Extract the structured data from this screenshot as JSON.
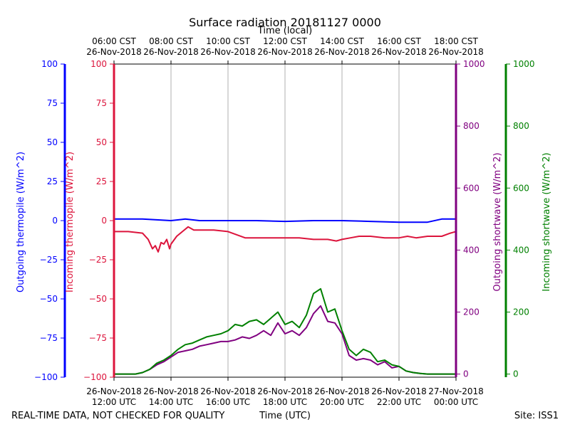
{
  "chart_data": {
    "type": "line",
    "title": "Surface radiation 20181127 0000",
    "top_axis_label": "Time (local)",
    "xlabel": "Time (UTC)",
    "footer_left": "REAL-TIME DATA, NOT CHECKED FOR QUALITY",
    "footer_right": "Site: ISS1",
    "x_range_utc_hours": [
      12,
      24
    ],
    "grid": "vertical",
    "x_ticks_utc": [
      {
        "hour": 12,
        "date": "26-Nov-2018",
        "time": "12:00 UTC"
      },
      {
        "hour": 14,
        "date": "26-Nov-2018",
        "time": "14:00 UTC"
      },
      {
        "hour": 16,
        "date": "26-Nov-2018",
        "time": "16:00 UTC"
      },
      {
        "hour": 18,
        "date": "26-Nov-2018",
        "time": "18:00 UTC"
      },
      {
        "hour": 20,
        "date": "26-Nov-2018",
        "time": "20:00 UTC"
      },
      {
        "hour": 22,
        "date": "26-Nov-2018",
        "time": "22:00 UTC"
      },
      {
        "hour": 24,
        "date": "27-Nov-2018",
        "time": "00:00 UTC"
      }
    ],
    "x_ticks_local": [
      {
        "hour": 12,
        "time": "06:00 CST",
        "date": "26-Nov-2018"
      },
      {
        "hour": 14,
        "time": "08:00 CST",
        "date": "26-Nov-2018"
      },
      {
        "hour": 16,
        "time": "10:00 CST",
        "date": "26-Nov-2018"
      },
      {
        "hour": 18,
        "time": "12:00 CST",
        "date": "26-Nov-2018"
      },
      {
        "hour": 20,
        "time": "14:00 CST",
        "date": "26-Nov-2018"
      },
      {
        "hour": 22,
        "time": "16:00 CST",
        "date": "26-Nov-2018"
      },
      {
        "hour": 24,
        "time": "18:00 CST",
        "date": "26-Nov-2018"
      }
    ],
    "axes": {
      "outgoing_thermopile": {
        "label": "Outgoing thermopile (W/m^2)",
        "color": "#0000ff",
        "ylim": [
          -100,
          100
        ],
        "ticks": [
          "100",
          "75",
          "50",
          "25",
          "0",
          "−25",
          "−50",
          "−75",
          "−100"
        ]
      },
      "incoming_thermopile": {
        "label": "Incoming thermopile (W/m^2)",
        "color": "#dc143c",
        "ylim": [
          -100,
          100
        ],
        "ticks": [
          "100",
          "75",
          "50",
          "25",
          "0",
          "−25",
          "−50",
          "−75",
          "−100"
        ]
      },
      "outgoing_shortwave": {
        "label": "Outgoing shortwave (W/m^2)",
        "color": "#800080",
        "ylim": [
          -10,
          1000
        ],
        "ticks": [
          "1000",
          "800",
          "600",
          "400",
          "200",
          "0"
        ]
      },
      "incoming_shortwave": {
        "label": "Incoming shortwave (W/m^2)",
        "color": "#008000",
        "ylim": [
          -10,
          1000
        ],
        "ticks": [
          "1000",
          "800",
          "600",
          "400",
          "200",
          "0"
        ]
      }
    },
    "series": [
      {
        "name": "Outgoing thermopile (W/m^2)",
        "axis": "outgoing_thermopile",
        "color": "#0000ff",
        "x": [
          12,
          13,
          14,
          14.5,
          15,
          16,
          17,
          18,
          19,
          20,
          21,
          22,
          23,
          23.5,
          24
        ],
        "y": [
          1,
          1,
          0,
          1,
          0,
          0,
          0,
          -0.5,
          0,
          0,
          -0.5,
          -1,
          -1,
          1,
          1
        ]
      },
      {
        "name": "Incoming thermopile (W/m^2)",
        "axis": "incoming_thermopile",
        "color": "#dc143c",
        "x": [
          12,
          12.5,
          13.0,
          13.2,
          13.35,
          13.45,
          13.55,
          13.65,
          13.75,
          13.85,
          13.95,
          14.0,
          14.2,
          14.4,
          14.6,
          14.8,
          15.0,
          15.5,
          16.0,
          16.3,
          16.6,
          17.0,
          17.5,
          18.0,
          18.5,
          19.0,
          19.5,
          19.8,
          20.0,
          20.3,
          20.6,
          21.0,
          21.5,
          22.0,
          22.3,
          22.6,
          23.0,
          23.5,
          23.8,
          24.0
        ],
        "y": [
          -7,
          -7,
          -8,
          -12,
          -18,
          -16,
          -20,
          -14,
          -15,
          -12,
          -18,
          -15,
          -10,
          -7,
          -4,
          -6,
          -6,
          -6,
          -7,
          -9,
          -11,
          -11,
          -11,
          -11,
          -11,
          -12,
          -12,
          -13,
          -12,
          -11,
          -10,
          -10,
          -11,
          -11,
          -10,
          -11,
          -10,
          -10,
          -8,
          -7
        ]
      },
      {
        "name": "Outgoing shortwave (W/m^2)",
        "axis": "outgoing_shortwave",
        "color": "#800080",
        "x": [
          12,
          12.75,
          13.0,
          13.25,
          13.5,
          13.75,
          14.0,
          14.25,
          14.5,
          14.75,
          15.0,
          15.25,
          15.5,
          15.75,
          16.0,
          16.25,
          16.5,
          16.75,
          17.0,
          17.25,
          17.5,
          17.75,
          18.0,
          18.25,
          18.5,
          18.75,
          19.0,
          19.25,
          19.5,
          19.75,
          20.0,
          20.25,
          20.5,
          20.75,
          21.0,
          21.25,
          21.5,
          21.75,
          22.0,
          22.25,
          22.5,
          22.75,
          23.0,
          23.5,
          24.0
        ],
        "y": [
          0,
          0,
          5,
          15,
          30,
          40,
          55,
          70,
          75,
          80,
          90,
          95,
          100,
          105,
          105,
          110,
          120,
          115,
          125,
          140,
          125,
          165,
          130,
          140,
          125,
          150,
          195,
          220,
          170,
          165,
          130,
          60,
          45,
          50,
          45,
          30,
          40,
          20,
          25,
          10,
          5,
          2,
          0,
          0,
          0
        ]
      },
      {
        "name": "Incoming shortwave (W/m^2)",
        "axis": "incoming_shortwave",
        "color": "#008000",
        "x": [
          12,
          12.75,
          13.0,
          13.25,
          13.5,
          13.75,
          14.0,
          14.25,
          14.5,
          14.75,
          15.0,
          15.25,
          15.5,
          15.75,
          16.0,
          16.25,
          16.5,
          16.75,
          17.0,
          17.25,
          17.5,
          17.75,
          18.0,
          18.25,
          18.5,
          18.75,
          19.0,
          19.25,
          19.5,
          19.75,
          20.0,
          20.25,
          20.5,
          20.75,
          21.0,
          21.25,
          21.5,
          21.75,
          22.0,
          22.25,
          22.5,
          22.75,
          23.0,
          23.5,
          24.0
        ],
        "y": [
          0,
          0,
          5,
          15,
          35,
          45,
          60,
          80,
          95,
          100,
          110,
          120,
          125,
          130,
          140,
          160,
          155,
          170,
          175,
          160,
          180,
          200,
          160,
          170,
          150,
          190,
          260,
          275,
          200,
          210,
          140,
          80,
          60,
          80,
          70,
          40,
          45,
          30,
          25,
          10,
          5,
          2,
          0,
          0,
          0
        ]
      }
    ]
  }
}
